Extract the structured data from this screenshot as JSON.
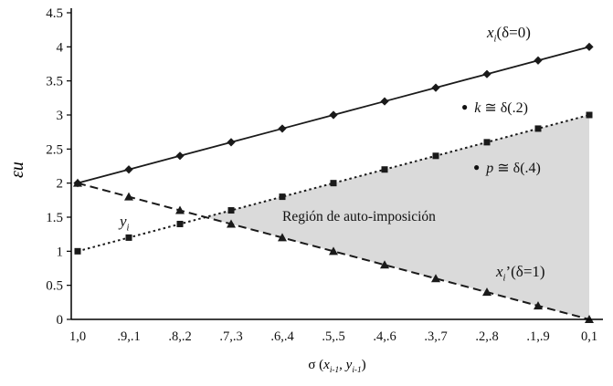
{
  "chart_data": {
    "type": "line",
    "title": "",
    "ylabel": "εu",
    "xaxis_title_parts": {
      "prefix": "σ (",
      "var1": "x",
      "sub1": "i-1",
      "sep": ", ",
      "var2": "y",
      "sub2": "i-1",
      "suffix": ")"
    },
    "categories": [
      "1,0",
      ".9,.1",
      ".8,.2",
      ".7,.3",
      ".6,.4",
      ".5,.5",
      ".4,.6",
      ".3,.7",
      ".2,.8",
      ".1,.9",
      "0,1"
    ],
    "ylim": [
      0,
      4.5
    ],
    "ytick_labels": [
      "0",
      "0.5",
      "1",
      "1.5",
      "2",
      "2.5",
      "3",
      "3.5",
      "4",
      "4.5"
    ],
    "grid": false,
    "legend_position": "none",
    "series": [
      {
        "name": "xi(δ=0)",
        "marker": "diamond",
        "line": "solid",
        "values": [
          2,
          2.2,
          2.4,
          2.6,
          2.8,
          3,
          3.2,
          3.4,
          3.6,
          3.8,
          4
        ]
      },
      {
        "name": "yi",
        "marker": "square",
        "line": "dotted",
        "values": [
          1,
          1.2,
          1.4,
          1.6,
          1.8,
          2,
          2.2,
          2.4,
          2.6,
          2.8,
          3
        ]
      },
      {
        "name": "xi'(δ=1)",
        "marker": "triangle",
        "line": "dashed",
        "values": [
          2,
          1.8,
          1.6,
          1.4,
          1.2,
          1,
          0.8,
          0.6,
          0.4,
          0.2,
          0
        ]
      }
    ],
    "region": {
      "label": "Región de auto-imposición",
      "between": [
        1,
        2
      ],
      "color": "#dadada"
    },
    "colors": {
      "line": "#1a1a1a",
      "axis": "#000000",
      "text": "#111111"
    },
    "annotations": {
      "solid_label": {
        "var": "x",
        "sub": "i",
        "rest": "(δ=0)"
      },
      "k_label": {
        "bullet": "●",
        "var": "k",
        "rest": " ≅ δ(.2)"
      },
      "p_label": {
        "bullet": "●",
        "var": "p",
        "rest": " ≅ δ(.4)"
      },
      "y_label": {
        "var": "y",
        "sub": "i"
      },
      "dashed_label": {
        "var": "x",
        "sub": "i",
        "rest": "’(δ=1)"
      }
    }
  }
}
